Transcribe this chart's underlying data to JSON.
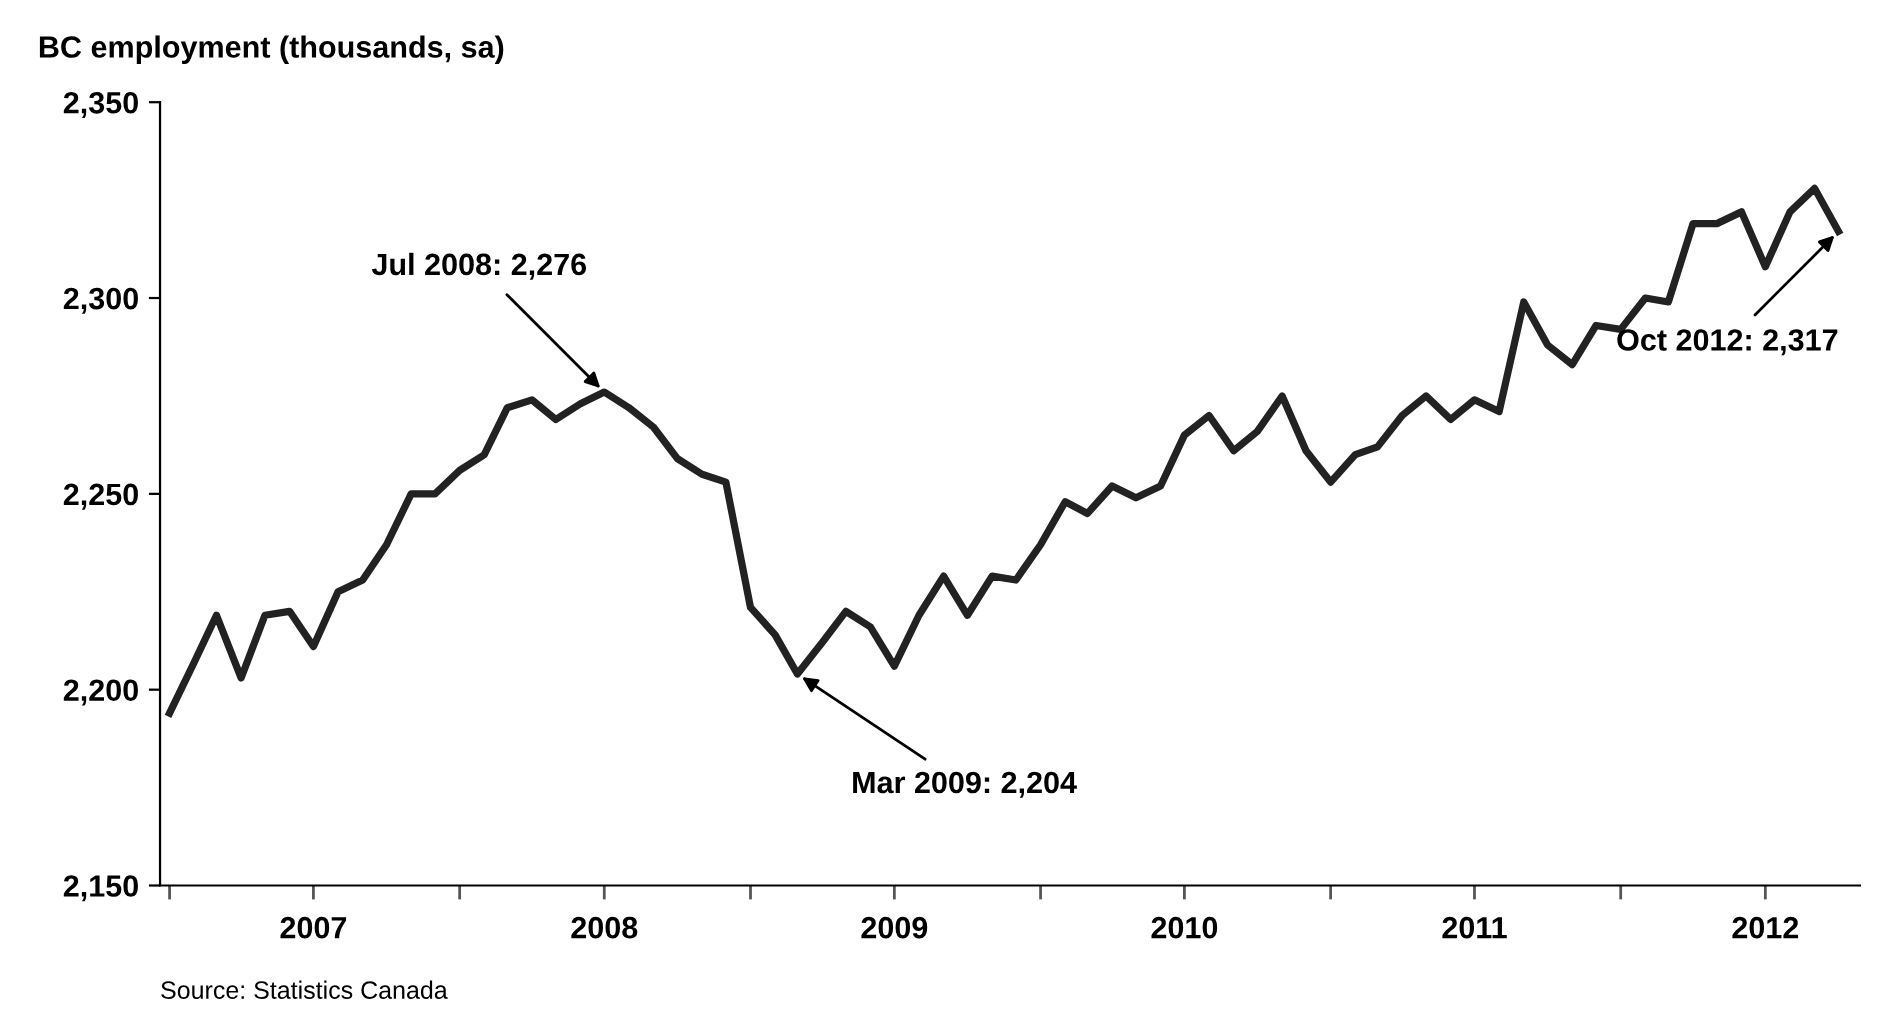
{
  "chart_data": {
    "type": "line",
    "title": "BC employment (thousands, sa)",
    "x": [
      "2007-01",
      "2007-02",
      "2007-03",
      "2007-04",
      "2007-05",
      "2007-06",
      "2007-07",
      "2007-08",
      "2007-09",
      "2007-10",
      "2007-11",
      "2007-12",
      "2008-01",
      "2008-02",
      "2008-03",
      "2008-04",
      "2008-05",
      "2008-06",
      "2008-07",
      "2008-08",
      "2008-09",
      "2008-10",
      "2008-11",
      "2008-12",
      "2009-01",
      "2009-02",
      "2009-03",
      "2009-04",
      "2009-05",
      "2009-06",
      "2009-07",
      "2009-08",
      "2009-09",
      "2009-10",
      "2009-11",
      "2009-12",
      "2010-01",
      "2010-02",
      "2010-03",
      "2010-04",
      "2010-05",
      "2010-06",
      "2010-07",
      "2010-08",
      "2010-09",
      "2010-10",
      "2010-11",
      "2010-12",
      "2011-01",
      "2011-02",
      "2011-03",
      "2011-04",
      "2011-05",
      "2011-06",
      "2011-07",
      "2011-08",
      "2011-09",
      "2011-10",
      "2011-11",
      "2011-12",
      "2012-01",
      "2012-02",
      "2012-03",
      "2012-04",
      "2012-05",
      "2012-06",
      "2012-07",
      "2012-08",
      "2012-09",
      "2012-10"
    ],
    "series": [
      {
        "color": "#222222",
        "values": [
          2194,
          2207,
          2219,
          2203,
          2219,
          2220,
          2211,
          2225,
          2228,
          2237,
          2250,
          2250,
          2256,
          2260,
          2272,
          2274,
          2269,
          2273,
          2276,
          2272,
          2267,
          2259,
          2255,
          2253,
          2221,
          2214,
          2204,
          2212,
          2220,
          2216,
          2206,
          2219,
          2229,
          2219,
          2229,
          2228,
          2237,
          2248,
          2245,
          2252,
          2249,
          2252,
          2265,
          2270,
          2261,
          2266,
          2275,
          2261,
          2253,
          2260,
          2262,
          2270,
          2275,
          2269,
          2274,
          2271,
          2299,
          2288,
          2283,
          2293,
          2292,
          2300,
          2299,
          2319,
          2319,
          2322,
          2308,
          2322,
          2328,
          2317
        ]
      }
    ],
    "xlim": [
      "2006-12-20",
      "2012-10-28"
    ],
    "xticks": [
      {
        "value": "2007-01-01",
        "label": null
      },
      {
        "value": "2007-07-01",
        "label": "2007"
      },
      {
        "value": "2008-01-01",
        "label": null
      },
      {
        "value": "2008-07-01",
        "label": "2008"
      },
      {
        "value": "2009-01-01",
        "label": null
      },
      {
        "value": "2009-07-01",
        "label": "2009"
      },
      {
        "value": "2010-01-01",
        "label": null
      },
      {
        "value": "2010-07-01",
        "label": "2010"
      },
      {
        "value": "2011-01-01",
        "label": null
      },
      {
        "value": "2011-07-01",
        "label": "2011"
      },
      {
        "value": "2012-01-01",
        "label": null
      },
      {
        "value": "2012-07-01",
        "label": "2012"
      }
    ],
    "ylim": [
      2150,
      2350
    ],
    "yticks": [
      {
        "value": 2150,
        "label": "2,150"
      },
      {
        "value": 2200,
        "label": "2,200"
      },
      {
        "value": 2250,
        "label": "2,250"
      },
      {
        "value": 2300,
        "label": "2,300"
      },
      {
        "value": 2350,
        "label": "2,350"
      }
    ],
    "grid": false,
    "marker": "none",
    "line_style": "solid",
    "annotations": [
      {
        "text": "Jul 2008: 2,276",
        "x": "2008-07",
        "y": 2276
      },
      {
        "text": "Mar 2009: 2,204",
        "x": "2009-03",
        "y": 2204
      },
      {
        "text": "Oct 2012: 2,317",
        "x": "2012-10",
        "y": 2317
      },
      "Source: Statistics Canada"
    ]
  }
}
